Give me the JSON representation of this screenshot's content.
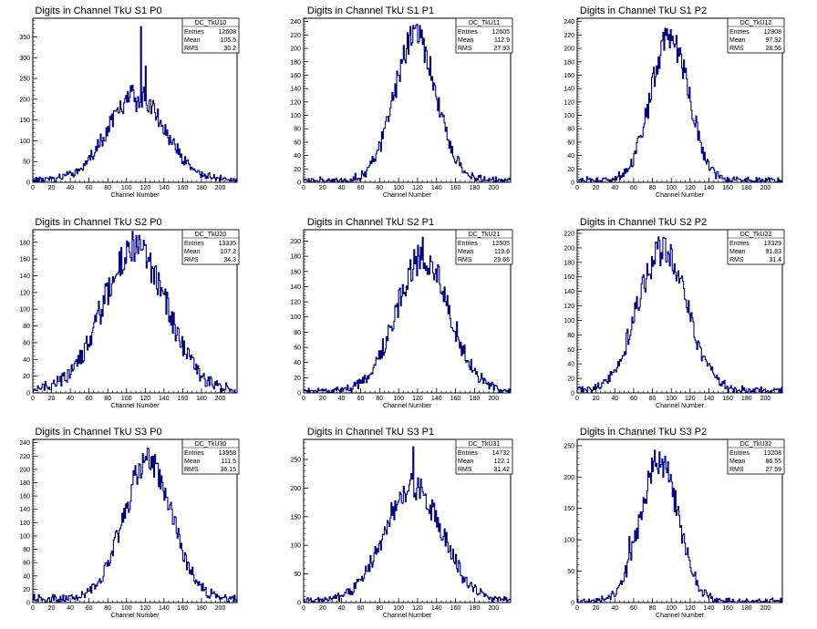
{
  "chart_data": [
    {
      "type": "histogram",
      "id": "TkU10",
      "title": "Digits in Channel TkU S1 P0",
      "xlabel": "Channel Number",
      "xlim": [
        0,
        218
      ],
      "ylim": [
        0,
        395
      ],
      "xticks": [
        0,
        20,
        40,
        60,
        80,
        100,
        120,
        140,
        160,
        180,
        200
      ],
      "yticks": [
        0,
        50,
        100,
        150,
        200,
        250,
        300,
        350
      ],
      "color": "#000080",
      "stats": {
        "header": "DC_TkU10",
        "rows": [
          [
            "Entries",
            "12608"
          ],
          [
            "Mean",
            "105.5"
          ],
          [
            "RMS",
            "30.2"
          ]
        ]
      },
      "peak": 110,
      "sigma": 30,
      "amp": 205,
      "noise": 12,
      "spikes": [
        [
          110,
          170
        ],
        [
          113,
          180
        ],
        [
          115,
          375
        ],
        [
          120,
          280
        ]
      ]
    },
    {
      "type": "histogram",
      "id": "TkU11",
      "title": "Digits in Channel TkU S1 P1",
      "xlabel": "Channel Number",
      "xlim": [
        0,
        218
      ],
      "ylim": [
        0,
        245
      ],
      "xticks": [
        0,
        20,
        40,
        60,
        80,
        100,
        120,
        140,
        160,
        180,
        200
      ],
      "yticks": [
        0,
        20,
        40,
        60,
        80,
        100,
        120,
        140,
        160,
        180,
        200,
        220,
        240
      ],
      "color": "#000080",
      "stats": {
        "header": "DC_TkU11",
        "rows": [
          [
            "Entries",
            "12605"
          ],
          [
            "Mean",
            "112.9"
          ],
          [
            "RMS",
            "27.93"
          ]
        ]
      },
      "peak": 117,
      "sigma": 22,
      "amp": 215,
      "noise": 6,
      "spikes": [
        [
          117,
          230
        ]
      ]
    },
    {
      "type": "histogram",
      "id": "TkU12",
      "title": "Digits in Channel TkU S1 P2",
      "xlabel": "Channel Number",
      "xlim": [
        0,
        218
      ],
      "ylim": [
        0,
        245
      ],
      "xticks": [
        0,
        20,
        40,
        60,
        80,
        100,
        120,
        140,
        160,
        180,
        200
      ],
      "yticks": [
        0,
        20,
        40,
        60,
        80,
        100,
        120,
        140,
        160,
        180,
        200,
        220,
        240
      ],
      "color": "#000080",
      "stats": {
        "header": "DC_TkU12",
        "rows": [
          [
            "Entries",
            "12908"
          ],
          [
            "Mean",
            "97.92"
          ],
          [
            "RMS",
            "28.56"
          ]
        ]
      },
      "peak": 98,
      "sigma": 20,
      "amp": 215,
      "noise": 6,
      "spikes": [
        [
          99,
          228
        ]
      ]
    },
    {
      "type": "histogram",
      "id": "TkU20",
      "title": "Digits in Channel TkU S2 P0",
      "xlabel": "Channel Number",
      "xlim": [
        0,
        218
      ],
      "ylim": [
        0,
        195
      ],
      "xticks": [
        0,
        20,
        40,
        60,
        80,
        100,
        120,
        140,
        160,
        180,
        200
      ],
      "yticks": [
        0,
        20,
        40,
        60,
        80,
        100,
        120,
        140,
        160,
        180
      ],
      "color": "#000080",
      "stats": {
        "header": "DC_TkU20",
        "rows": [
          [
            "Entries",
            "13335"
          ],
          [
            "Mean",
            "107.2"
          ],
          [
            "RMS",
            "34.3"
          ]
        ]
      },
      "peak": 108,
      "sigma": 34,
      "amp": 170,
      "noise": 6,
      "spikes": [
        [
          110,
          188
        ]
      ]
    },
    {
      "type": "histogram",
      "id": "TkU21",
      "title": "Digits in Channel TkU S2 P1",
      "xlabel": "Channel Number",
      "xlim": [
        0,
        218
      ],
      "ylim": [
        0,
        215
      ],
      "xticks": [
        0,
        20,
        40,
        60,
        80,
        100,
        120,
        140,
        160,
        180,
        200
      ],
      "yticks": [
        0,
        20,
        40,
        60,
        80,
        100,
        120,
        140,
        160,
        180,
        200
      ],
      "color": "#000080",
      "stats": {
        "header": "DC_TkU21",
        "rows": [
          [
            "Entries",
            "12505"
          ],
          [
            "Mean",
            "119.6"
          ],
          [
            "RMS",
            "29.66"
          ]
        ]
      },
      "peak": 125,
      "sigma": 28,
      "amp": 175,
      "noise": 5,
      "spikes": [
        [
          125,
          205
        ]
      ]
    },
    {
      "type": "histogram",
      "id": "TkU22",
      "title": "Digits in Channel TkU S2 P2",
      "xlabel": "Channel Number",
      "xlim": [
        0,
        218
      ],
      "ylim": [
        0,
        225
      ],
      "xticks": [
        0,
        20,
        40,
        60,
        80,
        100,
        120,
        140,
        160,
        180,
        200
      ],
      "yticks": [
        0,
        20,
        40,
        60,
        80,
        100,
        120,
        140,
        160,
        180,
        200,
        220
      ],
      "color": "#000080",
      "stats": {
        "header": "DC_TkU22",
        "rows": [
          [
            "Entries",
            "13329"
          ],
          [
            "Mean",
            "91.83"
          ],
          [
            "RMS",
            "31.4"
          ]
        ]
      },
      "peak": 90,
      "sigma": 26,
      "amp": 195,
      "noise": 6,
      "spikes": [
        [
          93,
          213
        ]
      ]
    },
    {
      "type": "histogram",
      "id": "TkU30",
      "title": "Digits in Channel TkU S3 P0",
      "xlabel": "Channel Number",
      "xlim": [
        0,
        218
      ],
      "ylim": [
        0,
        245
      ],
      "xticks": [
        0,
        20,
        40,
        60,
        80,
        100,
        120,
        140,
        160,
        180,
        200
      ],
      "yticks": [
        0,
        20,
        40,
        60,
        80,
        100,
        120,
        140,
        160,
        180,
        200,
        220,
        240
      ],
      "color": "#000080",
      "stats": {
        "header": "DC_TkU30",
        "rows": [
          [
            "Entries",
            "13958"
          ],
          [
            "Mean",
            "111.5"
          ],
          [
            "RMS",
            "36.15"
          ]
        ]
      },
      "peak": 122,
      "sigma": 26,
      "amp": 205,
      "noise": 10,
      "spikes": [
        [
          103,
          140
        ],
        [
          122,
          232
        ],
        [
          130,
          222
        ],
        [
          148,
          140
        ]
      ]
    },
    {
      "type": "histogram",
      "id": "TkU31",
      "title": "Digits in Channel TkU S3 P1",
      "xlabel": "Channel Number",
      "xlim": [
        0,
        218
      ],
      "ylim": [
        0,
        285
      ],
      "xticks": [
        0,
        20,
        40,
        60,
        80,
        100,
        120,
        140,
        160,
        180,
        200
      ],
      "yticks": [
        0,
        50,
        100,
        150,
        200,
        250
      ],
      "color": "#000080",
      "stats": {
        "header": "DC_TkU31",
        "rows": [
          [
            "Entries",
            "14732"
          ],
          [
            "Mean",
            "122.1"
          ],
          [
            "RMS",
            "31.42"
          ]
        ]
      },
      "peak": 115,
      "sigma": 30,
      "amp": 200,
      "noise": 8,
      "spikes": [
        [
          115,
          272
        ]
      ]
    },
    {
      "type": "histogram",
      "id": "TkU32",
      "title": "Digits in Channel TkU S3 P2",
      "xlabel": "Channel Number",
      "xlim": [
        0,
        218
      ],
      "ylim": [
        0,
        260
      ],
      "xticks": [
        0,
        20,
        40,
        60,
        80,
        100,
        120,
        140,
        160,
        180,
        200
      ],
      "yticks": [
        0,
        50,
        100,
        150,
        200,
        250
      ],
      "color": "#000080",
      "stats": {
        "header": "DC_TkU32",
        "rows": [
          [
            "Entries",
            "13208"
          ],
          [
            "Mean",
            "86.55"
          ],
          [
            "RMS",
            "27.59"
          ]
        ]
      },
      "peak": 87,
      "sigma": 20,
      "amp": 225,
      "noise": 5,
      "spikes": [
        [
          55,
          105
        ],
        [
          87,
          240
        ]
      ]
    }
  ]
}
